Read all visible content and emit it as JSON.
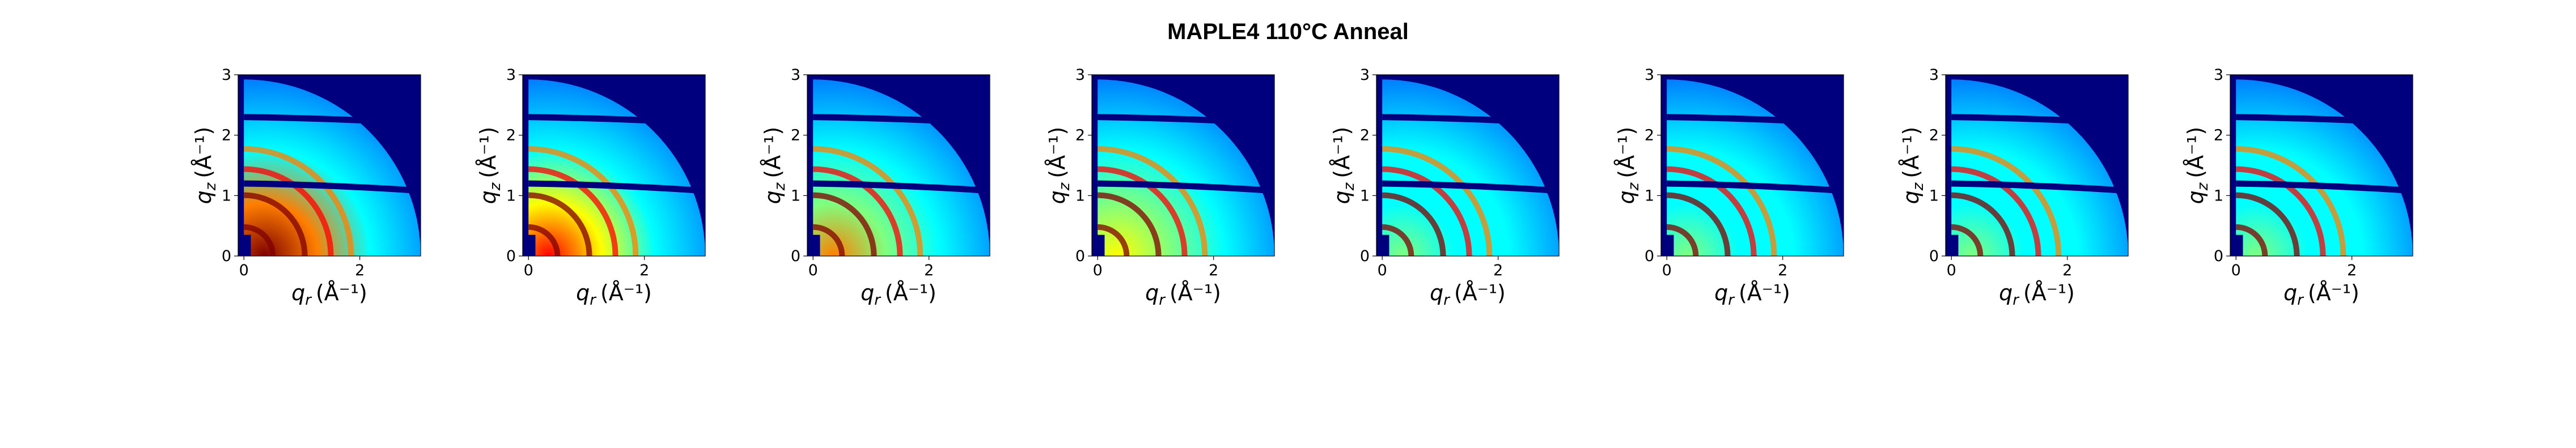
{
  "title": "MAPLE4 110°C Anneal",
  "colors": {
    "background_blue": "#00007f",
    "colormap": [
      "#00007f",
      "#0000ff",
      "#007fff",
      "#00ffff",
      "#7fff7f",
      "#ffff00",
      "#ff7f00",
      "#ff0000",
      "#7f0000"
    ]
  },
  "chart_data": [
    {
      "type": "heatmap",
      "panel": 1,
      "xlabel_main": "q",
      "xlabel_sub": "r",
      "xlabel_unit": "(Å⁻¹)",
      "ylabel_main": "q",
      "ylabel_sub": "z",
      "ylabel_unit": "(Å⁻¹)",
      "xlim": [
        -0.1,
        3.05
      ],
      "ylim": [
        0,
        3
      ],
      "xticks": [
        "0",
        "2"
      ],
      "yticks": [
        "0",
        "1",
        "2",
        "3"
      ],
      "background_level": 0.85,
      "rings": [
        {
          "q": 0.5,
          "intensity": 1.0
        },
        {
          "q": 1.05,
          "intensity": 0.9
        },
        {
          "q": 1.5,
          "intensity": 0.75
        },
        {
          "q": 1.85,
          "intensity": 0.6
        }
      ]
    },
    {
      "type": "heatmap",
      "panel": 2,
      "xlabel_main": "q",
      "xlabel_sub": "r",
      "xlabel_unit": "(Å⁻¹)",
      "ylabel_main": "q",
      "ylabel_sub": "z",
      "ylabel_unit": "(Å⁻¹)",
      "xlim": [
        -0.1,
        3.05
      ],
      "ylim": [
        0,
        3
      ],
      "xticks": [
        "0",
        "2"
      ],
      "yticks": [
        "0",
        "1",
        "2",
        "3"
      ],
      "background_level": 0.75,
      "rings": [
        {
          "q": 0.5,
          "intensity": 1.0
        },
        {
          "q": 1.05,
          "intensity": 0.9
        },
        {
          "q": 1.5,
          "intensity": 0.75
        },
        {
          "q": 1.85,
          "intensity": 0.6
        }
      ]
    },
    {
      "type": "heatmap",
      "panel": 3,
      "xlabel_main": "q",
      "xlabel_sub": "r",
      "xlabel_unit": "(Å⁻¹)",
      "ylabel_main": "q",
      "ylabel_sub": "z",
      "ylabel_unit": "(Å⁻¹)",
      "xlim": [
        -0.1,
        3.05
      ],
      "ylim": [
        0,
        3
      ],
      "xticks": [
        "0",
        "2"
      ],
      "yticks": [
        "0",
        "1",
        "2",
        "3"
      ],
      "background_level": 0.62,
      "rings": [
        {
          "q": 0.5,
          "intensity": 1.0
        },
        {
          "q": 1.05,
          "intensity": 0.9
        },
        {
          "q": 1.5,
          "intensity": 0.75
        },
        {
          "q": 1.85,
          "intensity": 0.6
        }
      ]
    },
    {
      "type": "heatmap",
      "panel": 4,
      "xlabel_main": "q",
      "xlabel_sub": "r",
      "xlabel_unit": "(Å⁻¹)",
      "ylabel_main": "q",
      "ylabel_sub": "z",
      "ylabel_unit": "(Å⁻¹)",
      "xlim": [
        -0.1,
        3.05
      ],
      "ylim": [
        0,
        3
      ],
      "xticks": [
        "0",
        "2"
      ],
      "yticks": [
        "0",
        "1",
        "2",
        "3"
      ],
      "background_level": 0.55,
      "rings": [
        {
          "q": 0.5,
          "intensity": 1.0
        },
        {
          "q": 1.05,
          "intensity": 0.9
        },
        {
          "q": 1.5,
          "intensity": 0.75
        },
        {
          "q": 1.85,
          "intensity": 0.6
        }
      ]
    },
    {
      "type": "heatmap",
      "panel": 5,
      "xlabel_main": "q",
      "xlabel_sub": "r",
      "xlabel_unit": "(Å⁻¹)",
      "ylabel_main": "q",
      "ylabel_sub": "z",
      "ylabel_unit": "(Å⁻¹)",
      "xlim": [
        -0.1,
        3.05
      ],
      "ylim": [
        0,
        3
      ],
      "xticks": [
        "0",
        "2"
      ],
      "yticks": [
        "0",
        "1",
        "2",
        "3"
      ],
      "background_level": 0.45,
      "rings": [
        {
          "q": 0.5,
          "intensity": 1.0
        },
        {
          "q": 1.05,
          "intensity": 0.9
        },
        {
          "q": 1.5,
          "intensity": 0.75
        },
        {
          "q": 1.85,
          "intensity": 0.6
        }
      ]
    },
    {
      "type": "heatmap",
      "panel": 6,
      "xlabel_main": "q",
      "xlabel_sub": "r",
      "xlabel_unit": "(Å⁻¹)",
      "ylabel_main": "q",
      "ylabel_sub": "z",
      "ylabel_unit": "(Å⁻¹)",
      "xlim": [
        -0.1,
        3.05
      ],
      "ylim": [
        0,
        3
      ],
      "xticks": [
        "0",
        "2"
      ],
      "yticks": [
        "0",
        "1",
        "2",
        "3"
      ],
      "background_level": 0.42,
      "rings": [
        {
          "q": 0.5,
          "intensity": 1.0
        },
        {
          "q": 1.05,
          "intensity": 0.9
        },
        {
          "q": 1.5,
          "intensity": 0.75
        },
        {
          "q": 1.85,
          "intensity": 0.6
        }
      ]
    },
    {
      "type": "heatmap",
      "panel": 7,
      "xlabel_main": "q",
      "xlabel_sub": "r",
      "xlabel_unit": "(Å⁻¹)",
      "ylabel_main": "q",
      "ylabel_sub": "z",
      "ylabel_unit": "(Å⁻¹)",
      "xlim": [
        -0.1,
        3.05
      ],
      "ylim": [
        0,
        3
      ],
      "xticks": [
        "0",
        "2"
      ],
      "yticks": [
        "0",
        "1",
        "2",
        "3"
      ],
      "background_level": 0.4,
      "rings": [
        {
          "q": 0.5,
          "intensity": 1.0
        },
        {
          "q": 1.05,
          "intensity": 0.9
        },
        {
          "q": 1.5,
          "intensity": 0.75
        },
        {
          "q": 1.85,
          "intensity": 0.6
        }
      ]
    },
    {
      "type": "heatmap",
      "panel": 8,
      "xlabel_main": "q",
      "xlabel_sub": "r",
      "xlabel_unit": "(Å⁻¹)",
      "ylabel_main": "q",
      "ylabel_sub": "z",
      "ylabel_unit": "(Å⁻¹)",
      "xlim": [
        -0.1,
        3.05
      ],
      "ylim": [
        0,
        3
      ],
      "xticks": [
        "0",
        "2"
      ],
      "yticks": [
        "0",
        "1",
        "2",
        "3"
      ],
      "background_level": 0.4,
      "rings": [
        {
          "q": 0.5,
          "intensity": 1.0
        },
        {
          "q": 1.05,
          "intensity": 0.9
        },
        {
          "q": 1.5,
          "intensity": 0.75
        },
        {
          "q": 1.85,
          "intensity": 0.6
        }
      ]
    }
  ]
}
